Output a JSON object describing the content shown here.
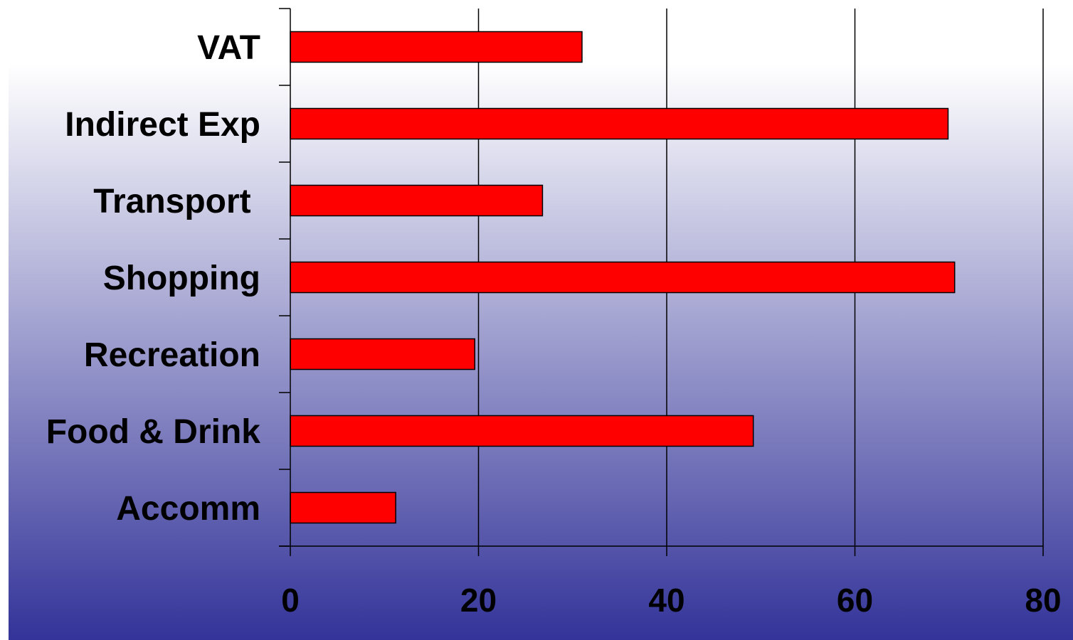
{
  "chart_data": {
    "type": "bar",
    "orientation": "horizontal",
    "categories": [
      "Accomm",
      "Food & Drink",
      "Recreation",
      "Shopping",
      "Transport ",
      "Indirect Exp",
      "VAT"
    ],
    "values": [
      11.2,
      49.2,
      19.6,
      70.6,
      26.8,
      69.9,
      31.0
    ],
    "xlim": [
      0,
      80
    ],
    "xticks": [
      "0",
      "20",
      "40",
      "60",
      "80"
    ],
    "title": "",
    "xlabel": "",
    "ylabel": "",
    "grid": "vertical",
    "legend": "none",
    "colors": {
      "bar_fill": "#ff0000",
      "bar_stroke": "#000000",
      "background_top": "#ffffff",
      "background_bottom": "#333399",
      "axis": "#000000"
    }
  }
}
